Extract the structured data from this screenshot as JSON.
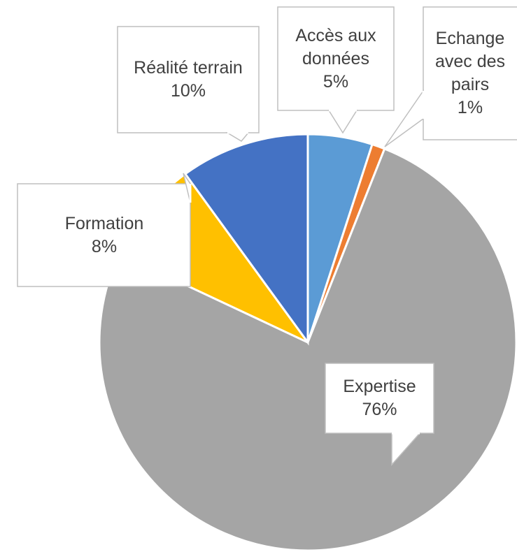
{
  "chart_data": {
    "type": "pie",
    "categories": [
      "Accès aux données",
      "Echange avec des pairs",
      "Expertise",
      "Formation",
      "Réalité terrain"
    ],
    "values": [
      5,
      1,
      76,
      8,
      10
    ],
    "value_labels": [
      "5%",
      "1%",
      "76%",
      "8%",
      "10%"
    ],
    "colors": [
      "#5b9bd5",
      "#ed7d31",
      "#a5a5a5",
      "#ffc000",
      "#4472c4"
    ]
  }
}
